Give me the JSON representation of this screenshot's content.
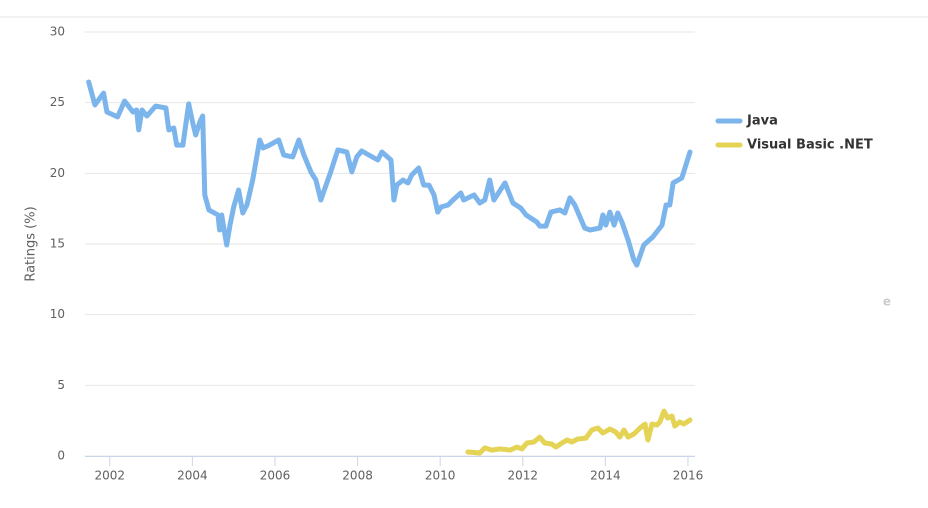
{
  "chart_data": {
    "type": "line",
    "y_label": "Ratings (%)",
    "watermark": "e",
    "xlim": [
      2001.4,
      2016.17
    ],
    "xticks": [
      2002,
      2004,
      2006,
      2008,
      2010,
      2012,
      2014,
      2016
    ],
    "ylim": [
      0,
      30
    ],
    "yticks": [
      0,
      5,
      10,
      15,
      20,
      25,
      30
    ],
    "grid": true,
    "legend": "right",
    "series": [
      {
        "name": "Java",
        "color": "#7cb5ec",
        "x": [
          2001.49,
          2001.64,
          2001.85,
          2001.93,
          2002.19,
          2002.36,
          2002.56,
          2002.65,
          2002.7,
          2002.78,
          2002.9,
          2003.11,
          2003.36,
          2003.43,
          2003.55,
          2003.62,
          2003.77,
          2003.91,
          2004.01,
          2004.08,
          2004.18,
          2004.25,
          2004.3,
          2004.4,
          2004.62,
          2004.66,
          2004.71,
          2004.76,
          2004.83,
          2004.91,
          2005.0,
          2005.12,
          2005.22,
          2005.32,
          2005.46,
          2005.63,
          2005.71,
          2005.87,
          2006.09,
          2006.21,
          2006.43,
          2006.58,
          2006.7,
          2006.87,
          2006.99,
          2007.11,
          2007.35,
          2007.52,
          2007.74,
          2007.86,
          2007.98,
          2008.1,
          2008.49,
          2008.59,
          2008.81,
          2008.88,
          2008.95,
          2009.1,
          2009.22,
          2009.31,
          2009.48,
          2009.6,
          2009.73,
          2009.85,
          2009.94,
          2010.02,
          2010.19,
          2010.31,
          2010.5,
          2010.57,
          2010.82,
          2010.96,
          2011.08,
          2011.2,
          2011.3,
          2011.57,
          2011.76,
          2011.95,
          2012.08,
          2012.34,
          2012.41,
          2012.56,
          2012.68,
          2012.9,
          2013.02,
          2013.14,
          2013.26,
          2013.5,
          2013.63,
          2013.87,
          2013.94,
          2014.01,
          2014.11,
          2014.21,
          2014.3,
          2014.4,
          2014.55,
          2014.69,
          2014.76,
          2014.93,
          2015.15,
          2015.37,
          2015.47,
          2015.56,
          2015.64,
          2015.85,
          2016.05
        ],
        "values": [
          26.46,
          24.84,
          25.68,
          24.34,
          23.99,
          25.12,
          24.34,
          24.48,
          23.07,
          24.48,
          24.06,
          24.76,
          24.62,
          23.07,
          23.21,
          22.0,
          22.0,
          24.91,
          23.56,
          22.71,
          23.63,
          24.06,
          18.47,
          17.41,
          17.05,
          15.99,
          17.05,
          16.13,
          14.93,
          16.34,
          17.62,
          18.82,
          17.19,
          17.76,
          19.53,
          22.36,
          21.79,
          22.0,
          22.36,
          21.3,
          21.16,
          22.36,
          21.3,
          20.1,
          19.53,
          18.11,
          20.1,
          21.65,
          21.51,
          20.1,
          21.16,
          21.58,
          20.94,
          21.51,
          20.94,
          18.11,
          19.17,
          19.53,
          19.32,
          19.88,
          20.38,
          19.17,
          19.17,
          18.47,
          17.26,
          17.62,
          17.76,
          18.11,
          18.61,
          18.11,
          18.47,
          17.9,
          18.11,
          19.53,
          18.11,
          19.32,
          17.9,
          17.55,
          17.05,
          16.56,
          16.27,
          16.27,
          17.26,
          17.41,
          17.19,
          18.26,
          17.76,
          16.13,
          15.99,
          16.13,
          17.05,
          16.34,
          17.26,
          16.34,
          17.19,
          16.56,
          15.28,
          13.87,
          13.51,
          14.93,
          15.5,
          16.34,
          17.76,
          17.76,
          19.32,
          19.67,
          21.51
        ]
      },
      {
        "name": "Visual Basic .NET",
        "color": "#e4d354",
        "x": [
          2010.67,
          2010.96,
          2011.08,
          2011.25,
          2011.45,
          2011.69,
          2011.86,
          2011.98,
          2012.1,
          2012.27,
          2012.41,
          2012.53,
          2012.7,
          2012.8,
          2012.95,
          2013.07,
          2013.19,
          2013.33,
          2013.53,
          2013.67,
          2013.82,
          2013.94,
          2014.11,
          2014.25,
          2014.35,
          2014.45,
          2014.55,
          2014.69,
          2014.84,
          2014.96,
          2015.03,
          2015.13,
          2015.25,
          2015.32,
          2015.42,
          2015.51,
          2015.61,
          2015.68,
          2015.8,
          2015.9,
          2016.05
        ],
        "values": [
          0.28,
          0.21,
          0.57,
          0.42,
          0.5,
          0.42,
          0.64,
          0.5,
          0.92,
          0.99,
          1.34,
          0.92,
          0.85,
          0.64,
          0.92,
          1.13,
          0.99,
          1.2,
          1.27,
          1.84,
          1.98,
          1.63,
          1.91,
          1.7,
          1.34,
          1.84,
          1.34,
          1.56,
          1.98,
          2.26,
          1.13,
          2.26,
          2.19,
          2.41,
          3.18,
          2.69,
          2.83,
          2.12,
          2.41,
          2.26,
          2.55
        ]
      }
    ]
  }
}
